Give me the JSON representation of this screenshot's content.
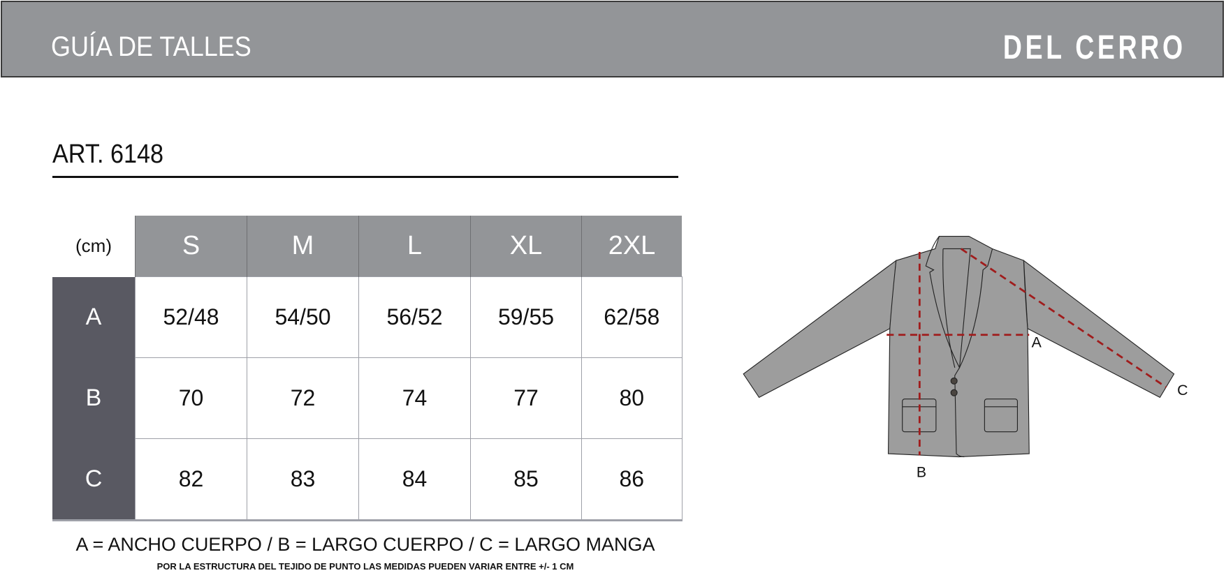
{
  "header": {
    "title": "GUÍA DE TALLES",
    "brand": "DEL CERRO"
  },
  "article": "ART. 6148",
  "table": {
    "unit": "(cm)",
    "sizes": [
      "S",
      "M",
      "L",
      "XL",
      "2XL"
    ],
    "rows": [
      {
        "label": "A",
        "values": [
          "52/48",
          "54/50",
          "56/52",
          "59/55",
          "62/58"
        ]
      },
      {
        "label": "B",
        "values": [
          "70",
          "72",
          "74",
          "77",
          "80"
        ]
      },
      {
        "label": "C",
        "values": [
          "82",
          "83",
          "84",
          "85",
          "86"
        ]
      }
    ]
  },
  "legend": "A = ANCHO CUERPO / B = LARGO CUERPO / C = LARGO MANGA",
  "note": "POR LA ESTRUCTURA DEL TEJIDO DE PUNTO  LAS MEDIDAS PUEDEN VARIAR ENTRE  +/- 1 CM",
  "diagram": {
    "labels": {
      "a": "A",
      "b": "B",
      "c": "C"
    }
  },
  "colors": {
    "header": "#939598",
    "label_column": "#595962",
    "garment": "#9d9d9d",
    "measure_line": "#a01c1c"
  }
}
